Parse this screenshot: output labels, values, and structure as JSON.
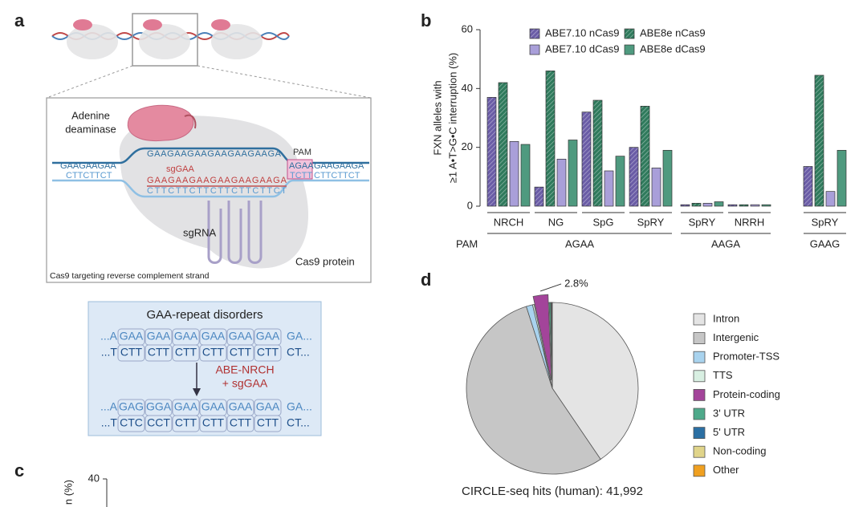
{
  "panel_labels": [
    "a",
    "b",
    "c",
    "d"
  ],
  "diagram": {
    "deaminase_label": [
      "Adenine",
      "deaminase"
    ],
    "target_strand": "GAAGAAGAAGAAGAAGAAGA",
    "left_top": "GAAGAAGAA",
    "left_bottom": "CTTCTTCT",
    "pam_label": "PAM",
    "pam_top": "AGAA",
    "pam_bottom": "TCTT",
    "right_top": "GAAGAAGA",
    "right_bottom": "CTTCTTCT",
    "sg_label": "sgGAA",
    "guide": "GAAGAAGAAGAAGAAGAAGA",
    "complement": "CTTCTTCTTCTTCTTCTTCT",
    "sgrna_label": "sgRNA",
    "cas9_label": "Cas9 protein",
    "caption": "Cas9 targeting reverse complement strand",
    "box_title": "GAA-repeat disorders",
    "before": {
      "top": [
        "...A",
        "GAA",
        "GAA",
        "GAA",
        "GAA",
        "GAA",
        "GAA",
        "GA..."
      ],
      "bottom": [
        "...T",
        "CTT",
        "CTT",
        "CTT",
        "CTT",
        "CTT",
        "CTT",
        "CT..."
      ]
    },
    "editor": [
      "ABE-NRCH",
      "+ sgGAA"
    ],
    "after": {
      "top": [
        "...A",
        "GAG",
        "GGA",
        "GAA",
        "GAA",
        "GAA",
        "GAA",
        "GA..."
      ],
      "bottom": [
        "...T",
        "CTC",
        "CCT",
        "CTT",
        "CTT",
        "CTT",
        "CTT",
        "CT..."
      ]
    }
  },
  "chart_data": [
    {
      "panel": "b",
      "type": "bar",
      "ylabel": [
        "FXN alleles with",
        "≥1 A•T>G•C interruption (%)"
      ],
      "group_title": "PAM",
      "groups": [
        {
          "label": "AGAA",
          "categories": [
            "NRCH",
            "NG",
            "SpG",
            "SpRY"
          ]
        },
        {
          "label": "AAGA",
          "categories": [
            "SpRY",
            "NRRH"
          ]
        },
        {
          "label": "GAAG",
          "categories": [
            "SpRY"
          ]
        }
      ],
      "ylim": [
        0,
        60
      ],
      "yticks": [
        0,
        20,
        40,
        60
      ],
      "series": [
        {
          "name": "ABE7.10 nCas9",
          "color": "#6a5ca6",
          "pattern": "hatched",
          "values": [
            37,
            6.5,
            32,
            20,
            0.5,
            0.5,
            13.5
          ]
        },
        {
          "name": "ABE7.10 dCas9",
          "color": "#a99fd9",
          "values": [
            22,
            16,
            12,
            13,
            1,
            0.5,
            5
          ]
        },
        {
          "name": "ABE8e nCas9",
          "color": "#2f7a5c",
          "pattern": "hatched",
          "values": [
            42,
            46,
            36,
            34,
            1,
            0.5,
            44.5
          ]
        },
        {
          "name": "ABE8e dCas9",
          "color": "#4f9a7f",
          "values": [
            21,
            22.5,
            17,
            19,
            1.5,
            0.5,
            19
          ]
        }
      ]
    },
    {
      "panel": "c",
      "type": "bar",
      "ylabel": "n (%)",
      "yticks": [
        40
      ]
    },
    {
      "panel": "d",
      "type": "pie",
      "title": "CIRCLE-seq hits (human): 41,992",
      "categories": [
        "Intron",
        "Intergenic",
        "Promoter-TSS",
        "TTS",
        "Protein-coding",
        "3' UTR",
        "5' UTR",
        "Non-coding",
        "Other"
      ],
      "values": [
        40.5,
        54.6,
        1.2,
        0.3,
        2.8,
        0.3,
        0.1,
        0.1,
        0.1
      ],
      "value_labels": [
        null,
        null,
        null,
        null,
        "2.8%",
        null,
        null,
        null,
        null
      ],
      "colors": [
        "#e4e4e4",
        "#c6c6c6",
        "#a9d3ee",
        "#d8efe2",
        "#a3449a",
        "#4ea98a",
        "#2b6fa3",
        "#e0d48a",
        "#f0a020"
      ]
    }
  ]
}
